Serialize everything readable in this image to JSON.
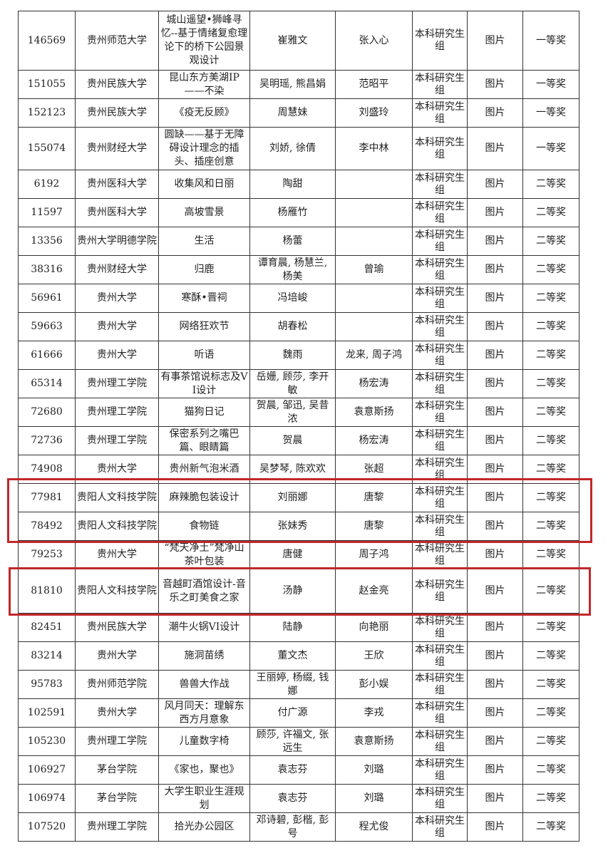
{
  "table": {
    "rows": [
      [
        "146569",
        "贵州师范大学",
        "城山遥望•狮峰寻忆--基于情绪复愈理论下的桥下公园景观设计",
        "崔雅文",
        "张入心",
        "本科研究生组",
        "图片",
        "一等奖"
      ],
      [
        "151055",
        "贵州民族大学",
        "昆山东方美湖IP——不染",
        "吴明瑶, 熊昌娟",
        "范昭平",
        "本科研究生组",
        "图片",
        "一等奖"
      ],
      [
        "152123",
        "贵州民族大学",
        "《疫无反顾》",
        "周慧妹",
        "刘盛玲",
        "本科研究生组",
        "图片",
        "一等奖"
      ],
      [
        "155074",
        "贵州财经大学",
        "圆缺——基于无障碍设计理念的插头、插座创意",
        "刘娇, 徐倩",
        "李中林",
        "本科研究生组",
        "图片",
        "一等奖"
      ],
      [
        "6192",
        "贵州医科大学",
        "收集风和日丽",
        "陶甜",
        null,
        "本科研究生组",
        "图片",
        "二等奖"
      ],
      [
        "11597",
        "贵州医科大学",
        "高坡雪景",
        "杨雁竹",
        null,
        "本科研究生组",
        "图片",
        "二等奖"
      ],
      [
        "13356",
        "贵州大学明德学院",
        "生活",
        "杨蕾",
        null,
        "本科研究生组",
        "图片",
        "二等奖"
      ],
      [
        "38316",
        "贵州财经大学",
        "归鹿",
        "谭育晨, 杨慧兰, 杨美",
        "曾瑜",
        "本科研究生组",
        "图片",
        "二等奖"
      ],
      [
        "56961",
        "贵州大学",
        "寒酥•晋祠",
        "冯培峻",
        null,
        "本科研究生组",
        "图片",
        "二等奖"
      ],
      [
        "59663",
        "贵州大学",
        "网络狂欢节",
        "胡春松",
        null,
        "本科研究生组",
        "图片",
        "二等奖"
      ],
      [
        "61666",
        "贵州大学",
        "听语",
        "魏雨",
        "龙来, 周子鸿",
        "本科研究生组",
        "图片",
        "二等奖"
      ],
      [
        "65314",
        "贵州理工学院",
        "有事茶馆说标志及VI设计",
        "岳姗, 顾莎, 李开敏",
        "杨宏涛",
        "本科研究生组",
        "图片",
        "二等奖"
      ],
      [
        "72680",
        "贵州理工学院",
        "猫狗日记",
        "贺晨, 邹迅, 吴昔浓",
        "袁意斯扬",
        "本科研究生组",
        "图片",
        "二等奖"
      ],
      [
        "72736",
        "贵州理工学院",
        "保密系列之嘴巴篇、眼睛篇",
        "贺晨",
        "杨宏涛",
        "本科研究生组",
        "图片",
        "二等奖"
      ],
      [
        "74908",
        "贵州大学",
        "贵州新气泡米酒",
        "吴梦琴, 陈欢欢",
        "张超",
        "本科研究生组",
        "图片",
        "二等奖"
      ],
      [
        "77981",
        "贵阳人文科技学院",
        "麻辣脆包装设计",
        "刘丽娜",
        "唐黎",
        "本科研究生组",
        "图片",
        "二等奖"
      ],
      [
        "78492",
        "贵阳人文科技学院",
        "食物链",
        "张妹秀",
        "唐黎",
        "本科研究生组",
        "图片",
        "二等奖"
      ],
      [
        "79253",
        "贵州大学",
        "“梵天净土”梵净山茶叶包装",
        "唐健",
        "周子鸿",
        "本科研究生组",
        "图片",
        "二等奖"
      ],
      [
        "81810",
        "贵阳人文科技学院",
        "音越町酒馆设计-音乐之町美食之家",
        "汤静",
        "赵金亮",
        "本科研究生组",
        "图片",
        "二等奖"
      ],
      [
        "82451",
        "贵州民族大学",
        "潮牛火锅VI设计",
        "陆静",
        "向艳丽",
        "本科研究生组",
        "图片",
        "二等奖"
      ],
      [
        "83214",
        "贵州大学",
        "施洞苗绣",
        "董文杰",
        "王欣",
        "本科研究生组",
        "图片",
        "二等奖"
      ],
      [
        "95783",
        "贵州师范学院",
        "兽兽大作战",
        "王丽婷, 杨缀, 钱娜",
        "彭小娱",
        "本科研究生组",
        "图片",
        "二等奖"
      ],
      [
        "102591",
        "贵州大学",
        "风月同天：理解东西方月意象",
        "付广源",
        "李戎",
        "本科研究生组",
        "图片",
        "二等奖"
      ],
      [
        "105230",
        "贵州理工学院",
        "儿童数字椅",
        "顾莎, 许福文, 张远生",
        "袁意斯扬",
        "本科研究生组",
        "图片",
        "二等奖"
      ],
      [
        "106927",
        "茅台学院",
        "《家也，聚也》",
        "袁志芬",
        "刘璐",
        "本科研究生组",
        "图片",
        "二等奖"
      ],
      [
        "106974",
        "茅台学院",
        "大学生职业生涯规划",
        "袁志芬",
        "刘璐",
        "本科研究生组",
        "图片",
        "二等奖"
      ],
      [
        "107520",
        "贵州理工学院",
        "拾光办公园区",
        "邓诗碧, 彭楷, 彭号",
        "程尤俊",
        "本科研究生组",
        "图片",
        "二等奖"
      ]
    ]
  }
}
